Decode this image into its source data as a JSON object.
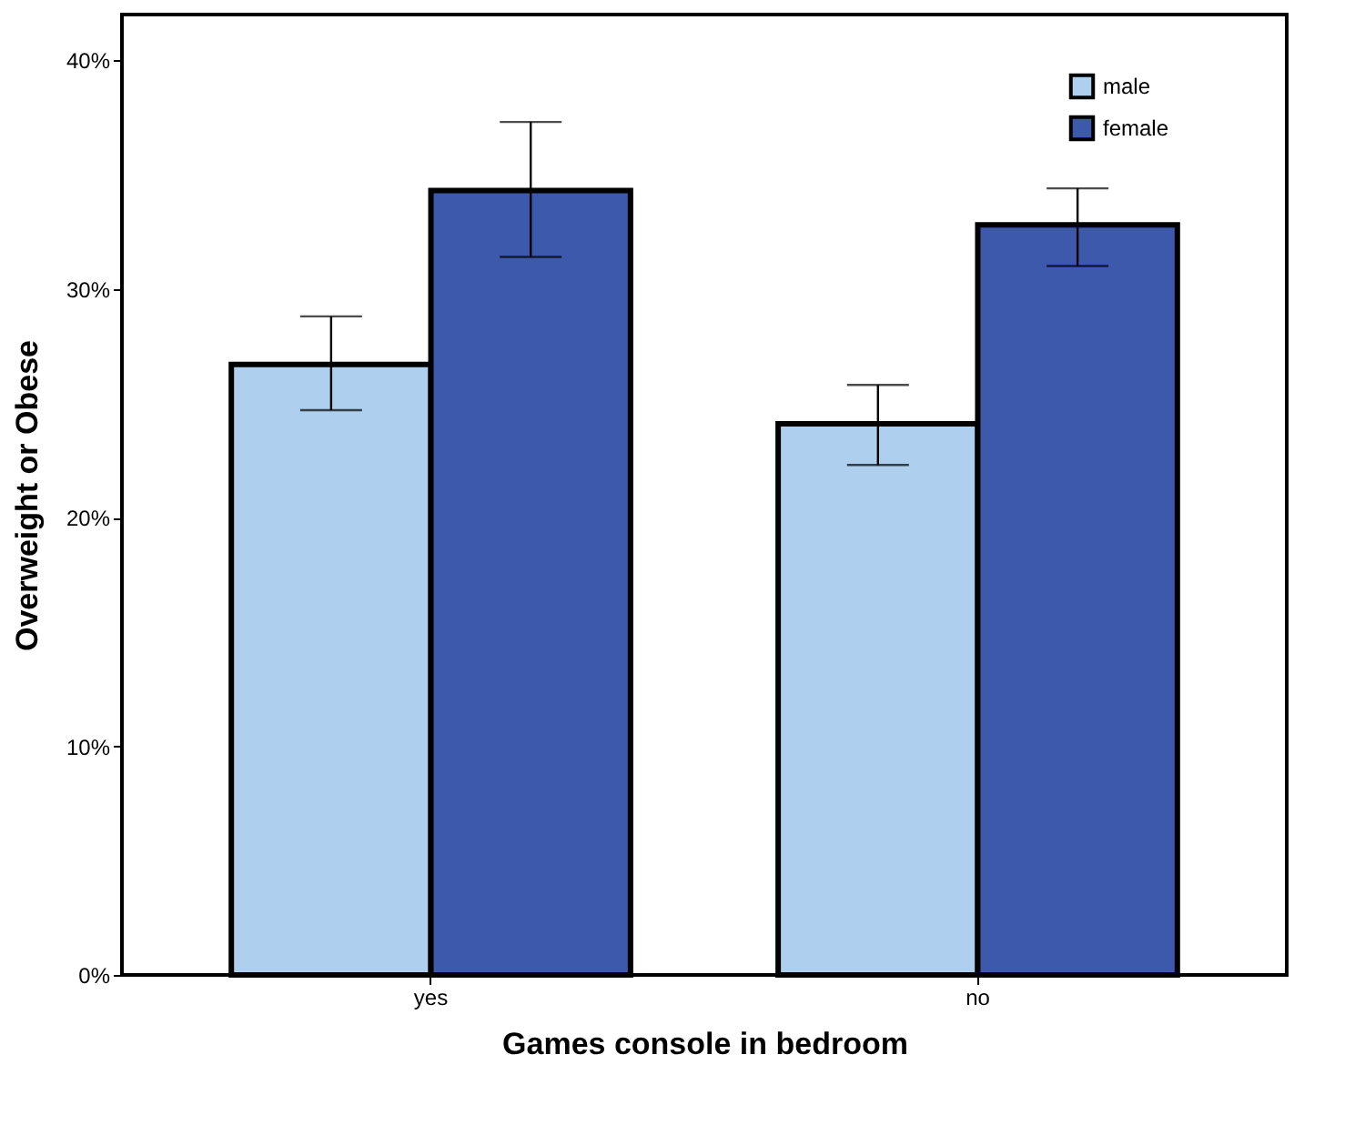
{
  "chart_data": {
    "type": "bar",
    "xlabel": "Games console in bedroom",
    "ylabel": "Overweight or Obese",
    "categories": [
      "yes",
      "no"
    ],
    "series": [
      {
        "name": "male",
        "color": "#aed0ee",
        "values": [
          26.7,
          24.1
        ],
        "errors": [
          [
            24.7,
            28.8
          ],
          [
            22.3,
            25.8
          ]
        ]
      },
      {
        "name": "female",
        "color": "#3d59ab",
        "values": [
          34.3,
          32.8
        ],
        "errors": [
          [
            31.4,
            37.3
          ],
          [
            31.0,
            34.4
          ]
        ]
      }
    ],
    "ylim": [
      0,
      42
    ],
    "yticks": [
      {
        "value": 0,
        "label": "0%"
      },
      {
        "value": 10,
        "label": "10%"
      },
      {
        "value": 20,
        "label": "20%"
      },
      {
        "value": 30,
        "label": "30%"
      },
      {
        "value": 40,
        "label": "40%"
      }
    ],
    "grid": false,
    "legend": "top right"
  }
}
